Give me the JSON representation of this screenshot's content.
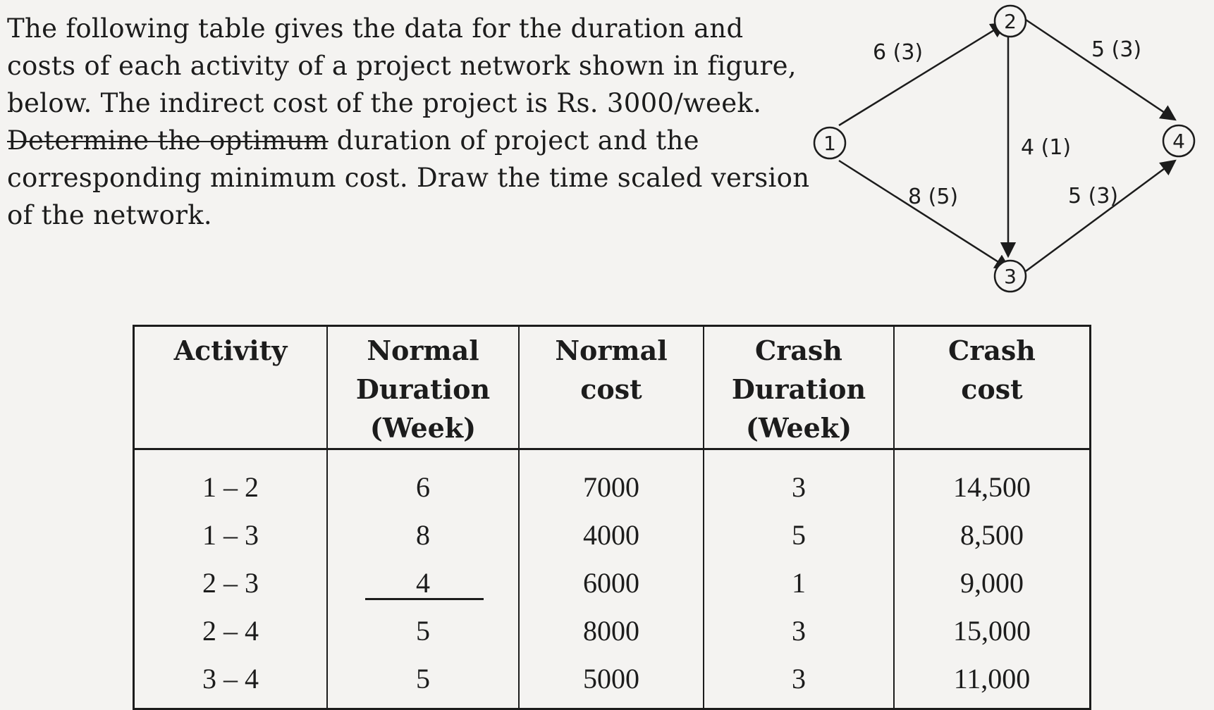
{
  "problem": {
    "line1": "The following table gives the data for the duration and",
    "line2": "costs of each activity of a project network shown in figure,",
    "line3": "below. The indirect cost of the project is Rs. 3000/week.",
    "line4_a": "Determine the optimum",
    "line4_b": " duration of project and the",
    "line5": "corresponding minimum cost. Draw the time scaled version",
    "line6": "of the network."
  },
  "network": {
    "nodes": [
      "1",
      "2",
      "3",
      "4"
    ],
    "edges": [
      {
        "from": "1",
        "to": "2",
        "label": "6 (3)"
      },
      {
        "from": "1",
        "to": "3",
        "label": "8 (5)"
      },
      {
        "from": "2",
        "to": "3",
        "label": "4 (1)"
      },
      {
        "from": "2",
        "to": "4",
        "label": "5 (3)"
      },
      {
        "from": "3",
        "to": "4",
        "label": "5 (3)"
      }
    ]
  },
  "table": {
    "headers": [
      {
        "l1": "Activity",
        "l2": "",
        "l3": ""
      },
      {
        "l1": "Normal",
        "l2": "Duration",
        "l3": "(Week)"
      },
      {
        "l1": "Normal",
        "l2": "cost",
        "l3": ""
      },
      {
        "l1": "Crash",
        "l2": "Duration",
        "l3": "(Week)"
      },
      {
        "l1": "Crash",
        "l2": "cost",
        "l3": ""
      }
    ],
    "rows": [
      [
        "1 – 2",
        "6",
        "7000",
        "3",
        "14,500"
      ],
      [
        "1 – 3",
        "8",
        "4000",
        "5",
        "8,500"
      ],
      [
        "2 – 3",
        "4",
        "6000",
        "1",
        "9,000"
      ],
      [
        "2 – 4",
        "5",
        "8000",
        "3",
        "15,000"
      ],
      [
        "3 – 4",
        "5",
        "5000",
        "3",
        "11,000"
      ]
    ]
  }
}
